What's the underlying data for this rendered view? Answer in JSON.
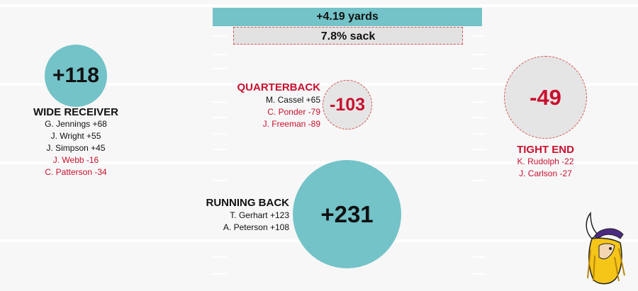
{
  "summary": {
    "yards": "+4.19 yards",
    "sack": "7.8% sack"
  },
  "colors": {
    "positive": "#73c3c8",
    "negative": "#c8102e",
    "neutral_fill": "#e5e5e5"
  },
  "positions": {
    "wide_receiver": {
      "title": "WIDE RECEIVER",
      "total": "+118",
      "players": [
        {
          "text": "G. Jennings +68",
          "sign": "positive"
        },
        {
          "text": "J. Wright +55",
          "sign": "positive"
        },
        {
          "text": "J. Simpson +45",
          "sign": "positive"
        },
        {
          "text": "J. Webb -16",
          "sign": "negative"
        },
        {
          "text": "C. Patterson -34",
          "sign": "negative"
        }
      ]
    },
    "quarterback": {
      "title": "QUARTERBACK",
      "total": "-103",
      "players": [
        {
          "text": "M. Cassel +65",
          "sign": "positive"
        },
        {
          "text": "C. Ponder -79",
          "sign": "negative"
        },
        {
          "text": "J. Freeman -89",
          "sign": "negative"
        }
      ]
    },
    "tight_end": {
      "title": "TIGHT END",
      "total": "-49",
      "players": [
        {
          "text": "K. Rudolph -22",
          "sign": "negative"
        },
        {
          "text": "J. Carlson -27",
          "sign": "negative"
        }
      ]
    },
    "running_back": {
      "title": "RUNNING BACK",
      "total": "+231",
      "players": [
        {
          "text": "T. Gerhart +123",
          "sign": "positive"
        },
        {
          "text": "A. Peterson +108",
          "sign": "positive"
        }
      ]
    }
  },
  "logo": {
    "icon": "vikings-logo-icon"
  }
}
